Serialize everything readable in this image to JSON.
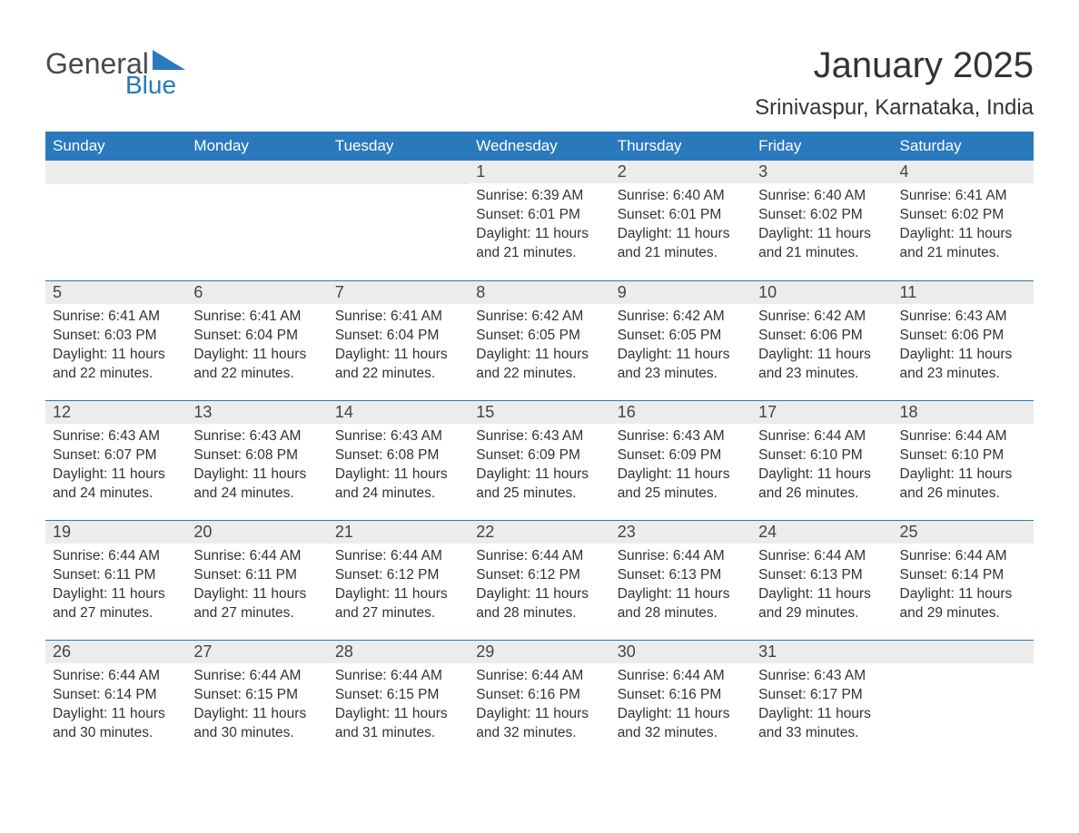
{
  "logo": {
    "word1": "General",
    "word2": "Blue",
    "accent_color": "#2a79bd",
    "text_color": "#4a4a4a"
  },
  "title": "January 2025",
  "location": "Srinivaspur, Karnataka, India",
  "colors": {
    "header_bg": "#2a79bd",
    "header_text": "#ffffff",
    "daynum_bg": "#ececec",
    "row_divider": "#2a79bd",
    "body_text": "#333333",
    "page_bg": "#ffffff"
  },
  "day_headers": [
    "Sunday",
    "Monday",
    "Tuesday",
    "Wednesday",
    "Thursday",
    "Friday",
    "Saturday"
  ],
  "weeks": [
    [
      null,
      null,
      null,
      {
        "n": "1",
        "sunrise": "Sunrise: 6:39 AM",
        "sunset": "Sunset: 6:01 PM",
        "dl1": "Daylight: 11 hours",
        "dl2": "and 21 minutes."
      },
      {
        "n": "2",
        "sunrise": "Sunrise: 6:40 AM",
        "sunset": "Sunset: 6:01 PM",
        "dl1": "Daylight: 11 hours",
        "dl2": "and 21 minutes."
      },
      {
        "n": "3",
        "sunrise": "Sunrise: 6:40 AM",
        "sunset": "Sunset: 6:02 PM",
        "dl1": "Daylight: 11 hours",
        "dl2": "and 21 minutes."
      },
      {
        "n": "4",
        "sunrise": "Sunrise: 6:41 AM",
        "sunset": "Sunset: 6:02 PM",
        "dl1": "Daylight: 11 hours",
        "dl2": "and 21 minutes."
      }
    ],
    [
      {
        "n": "5",
        "sunrise": "Sunrise: 6:41 AM",
        "sunset": "Sunset: 6:03 PM",
        "dl1": "Daylight: 11 hours",
        "dl2": "and 22 minutes."
      },
      {
        "n": "6",
        "sunrise": "Sunrise: 6:41 AM",
        "sunset": "Sunset: 6:04 PM",
        "dl1": "Daylight: 11 hours",
        "dl2": "and 22 minutes."
      },
      {
        "n": "7",
        "sunrise": "Sunrise: 6:41 AM",
        "sunset": "Sunset: 6:04 PM",
        "dl1": "Daylight: 11 hours",
        "dl2": "and 22 minutes."
      },
      {
        "n": "8",
        "sunrise": "Sunrise: 6:42 AM",
        "sunset": "Sunset: 6:05 PM",
        "dl1": "Daylight: 11 hours",
        "dl2": "and 22 minutes."
      },
      {
        "n": "9",
        "sunrise": "Sunrise: 6:42 AM",
        "sunset": "Sunset: 6:05 PM",
        "dl1": "Daylight: 11 hours",
        "dl2": "and 23 minutes."
      },
      {
        "n": "10",
        "sunrise": "Sunrise: 6:42 AM",
        "sunset": "Sunset: 6:06 PM",
        "dl1": "Daylight: 11 hours",
        "dl2": "and 23 minutes."
      },
      {
        "n": "11",
        "sunrise": "Sunrise: 6:43 AM",
        "sunset": "Sunset: 6:06 PM",
        "dl1": "Daylight: 11 hours",
        "dl2": "and 23 minutes."
      }
    ],
    [
      {
        "n": "12",
        "sunrise": "Sunrise: 6:43 AM",
        "sunset": "Sunset: 6:07 PM",
        "dl1": "Daylight: 11 hours",
        "dl2": "and 24 minutes."
      },
      {
        "n": "13",
        "sunrise": "Sunrise: 6:43 AM",
        "sunset": "Sunset: 6:08 PM",
        "dl1": "Daylight: 11 hours",
        "dl2": "and 24 minutes."
      },
      {
        "n": "14",
        "sunrise": "Sunrise: 6:43 AM",
        "sunset": "Sunset: 6:08 PM",
        "dl1": "Daylight: 11 hours",
        "dl2": "and 24 minutes."
      },
      {
        "n": "15",
        "sunrise": "Sunrise: 6:43 AM",
        "sunset": "Sunset: 6:09 PM",
        "dl1": "Daylight: 11 hours",
        "dl2": "and 25 minutes."
      },
      {
        "n": "16",
        "sunrise": "Sunrise: 6:43 AM",
        "sunset": "Sunset: 6:09 PM",
        "dl1": "Daylight: 11 hours",
        "dl2": "and 25 minutes."
      },
      {
        "n": "17",
        "sunrise": "Sunrise: 6:44 AM",
        "sunset": "Sunset: 6:10 PM",
        "dl1": "Daylight: 11 hours",
        "dl2": "and 26 minutes."
      },
      {
        "n": "18",
        "sunrise": "Sunrise: 6:44 AM",
        "sunset": "Sunset: 6:10 PM",
        "dl1": "Daylight: 11 hours",
        "dl2": "and 26 minutes."
      }
    ],
    [
      {
        "n": "19",
        "sunrise": "Sunrise: 6:44 AM",
        "sunset": "Sunset: 6:11 PM",
        "dl1": "Daylight: 11 hours",
        "dl2": "and 27 minutes."
      },
      {
        "n": "20",
        "sunrise": "Sunrise: 6:44 AM",
        "sunset": "Sunset: 6:11 PM",
        "dl1": "Daylight: 11 hours",
        "dl2": "and 27 minutes."
      },
      {
        "n": "21",
        "sunrise": "Sunrise: 6:44 AM",
        "sunset": "Sunset: 6:12 PM",
        "dl1": "Daylight: 11 hours",
        "dl2": "and 27 minutes."
      },
      {
        "n": "22",
        "sunrise": "Sunrise: 6:44 AM",
        "sunset": "Sunset: 6:12 PM",
        "dl1": "Daylight: 11 hours",
        "dl2": "and 28 minutes."
      },
      {
        "n": "23",
        "sunrise": "Sunrise: 6:44 AM",
        "sunset": "Sunset: 6:13 PM",
        "dl1": "Daylight: 11 hours",
        "dl2": "and 28 minutes."
      },
      {
        "n": "24",
        "sunrise": "Sunrise: 6:44 AM",
        "sunset": "Sunset: 6:13 PM",
        "dl1": "Daylight: 11 hours",
        "dl2": "and 29 minutes."
      },
      {
        "n": "25",
        "sunrise": "Sunrise: 6:44 AM",
        "sunset": "Sunset: 6:14 PM",
        "dl1": "Daylight: 11 hours",
        "dl2": "and 29 minutes."
      }
    ],
    [
      {
        "n": "26",
        "sunrise": "Sunrise: 6:44 AM",
        "sunset": "Sunset: 6:14 PM",
        "dl1": "Daylight: 11 hours",
        "dl2": "and 30 minutes."
      },
      {
        "n": "27",
        "sunrise": "Sunrise: 6:44 AM",
        "sunset": "Sunset: 6:15 PM",
        "dl1": "Daylight: 11 hours",
        "dl2": "and 30 minutes."
      },
      {
        "n": "28",
        "sunrise": "Sunrise: 6:44 AM",
        "sunset": "Sunset: 6:15 PM",
        "dl1": "Daylight: 11 hours",
        "dl2": "and 31 minutes."
      },
      {
        "n": "29",
        "sunrise": "Sunrise: 6:44 AM",
        "sunset": "Sunset: 6:16 PM",
        "dl1": "Daylight: 11 hours",
        "dl2": "and 32 minutes."
      },
      {
        "n": "30",
        "sunrise": "Sunrise: 6:44 AM",
        "sunset": "Sunset: 6:16 PM",
        "dl1": "Daylight: 11 hours",
        "dl2": "and 32 minutes."
      },
      {
        "n": "31",
        "sunrise": "Sunrise: 6:43 AM",
        "sunset": "Sunset: 6:17 PM",
        "dl1": "Daylight: 11 hours",
        "dl2": "and 33 minutes."
      },
      null
    ]
  ]
}
